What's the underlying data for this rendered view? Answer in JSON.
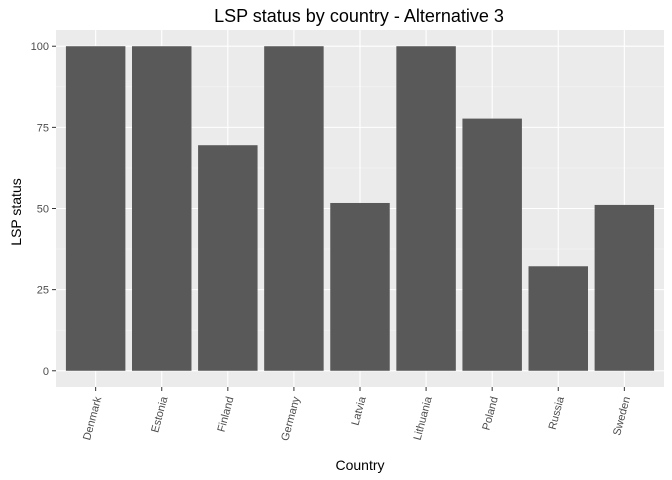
{
  "chart_data": {
    "type": "bar",
    "title": "LSP status by country - Alternative 3",
    "xlabel": "Country",
    "ylabel": "LSP status",
    "categories": [
      "Denmark",
      "Estonia",
      "Finland",
      "Germany",
      "Latvia",
      "Lithuania",
      "Poland",
      "Russia",
      "Sweden"
    ],
    "values": [
      100,
      100,
      69.5,
      100,
      51.7,
      100,
      77.7,
      32.2,
      51.1
    ],
    "ylim": [
      -5,
      105
    ],
    "yticks": [
      0,
      25,
      50,
      75,
      100
    ],
    "grid": true,
    "bar_color": "#595959",
    "panel_background": "#ebebeb"
  }
}
